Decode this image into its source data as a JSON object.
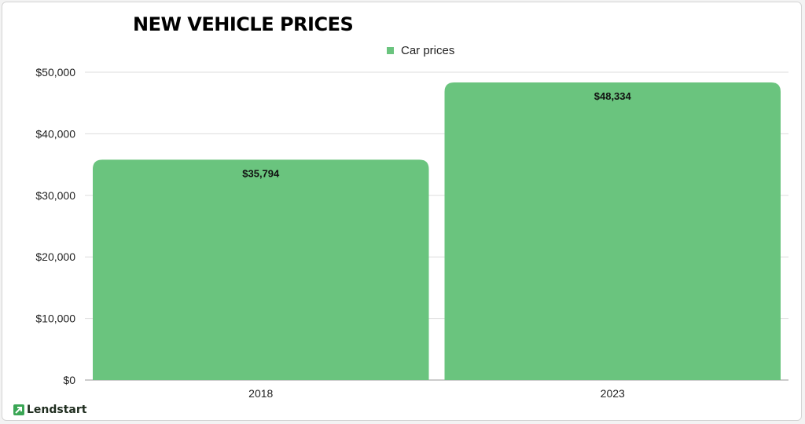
{
  "chart_data": {
    "type": "bar",
    "title": "NEW VEHICLE PRICES",
    "categories": [
      "2018",
      "2023"
    ],
    "series": [
      {
        "name": "Car prices",
        "values": [
          35794,
          48334
        ],
        "labels": [
          "$35,794",
          "$48,334"
        ],
        "color": "#6ac47e"
      }
    ],
    "ylim": [
      0,
      50000
    ],
    "yticks": [
      0,
      10000,
      20000,
      30000,
      40000,
      50000
    ],
    "ytick_labels": [
      "$0",
      "$10,000",
      "$20,000",
      "$30,000",
      "$40,000",
      "$50,000"
    ],
    "grid": true,
    "legend_position": "top-center"
  },
  "brand": {
    "name": "Lendstart",
    "icon": "lendstart-logo-icon",
    "accent": "#3aa655"
  }
}
